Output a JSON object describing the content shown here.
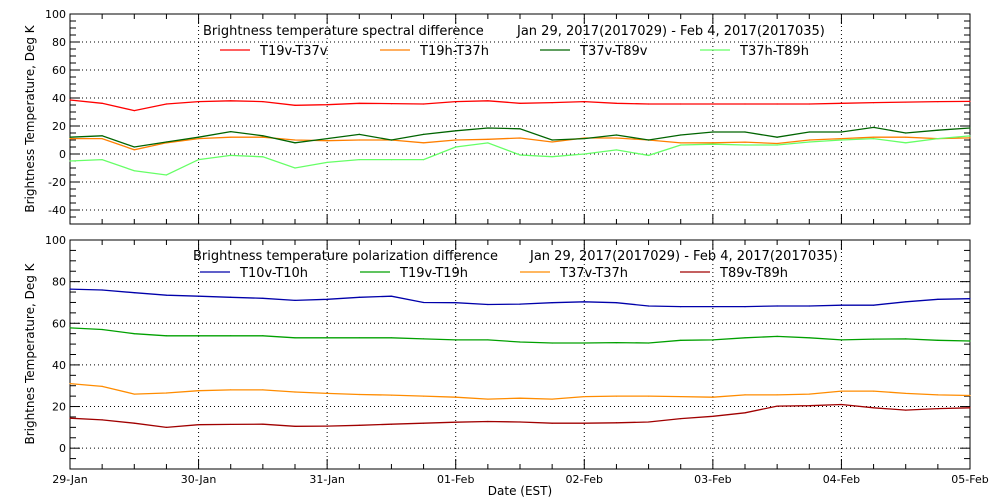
{
  "chart_data": [
    {
      "type": "line",
      "title": "Brightness temperature spectral difference",
      "subtitle": "Jan 29, 2017(2017029) - Feb  4, 2017(2017035)",
      "xlabel": "",
      "ylabel": "Brightness Temperature, Deg K",
      "ylim": [
        -50,
        100
      ],
      "yticks": [
        "100",
        "80",
        "60",
        "40",
        "20",
        "0",
        "-20",
        "-40"
      ],
      "xlim": [
        "2017-01-29T00:00",
        "2017-02-05T00:00"
      ],
      "grid": true,
      "legend": "top",
      "x": [
        "2017-01-29T00:00",
        "2017-01-29T06:00",
        "2017-01-29T12:00",
        "2017-01-29T18:00",
        "2017-01-30T00:00",
        "2017-01-30T06:00",
        "2017-01-30T12:00",
        "2017-01-30T18:00",
        "2017-01-31T00:00",
        "2017-01-31T06:00",
        "2017-01-31T12:00",
        "2017-01-31T18:00",
        "2017-02-01T00:00",
        "2017-02-01T06:00",
        "2017-02-01T12:00",
        "2017-02-01T18:00",
        "2017-02-02T00:00",
        "2017-02-02T06:00",
        "2017-02-02T12:00",
        "2017-02-02T18:00",
        "2017-02-03T00:00",
        "2017-02-03T06:00",
        "2017-02-03T12:00",
        "2017-02-03T18:00",
        "2017-02-04T00:00",
        "2017-02-04T06:00",
        "2017-02-04T12:00",
        "2017-02-04T18:00",
        "2017-02-05T00:00"
      ],
      "series": [
        {
          "name": "T19v-T37v",
          "color": "#ff0000",
          "values": [
            38.6,
            36.2,
            31,
            35.7,
            37.4,
            38,
            37.4,
            34.8,
            35.2,
            36.2,
            36,
            35.7,
            37.4,
            38,
            36.2,
            36.7,
            37.4,
            36.2,
            35.7,
            35.7,
            35.7,
            35.7,
            35.7,
            35.7,
            36.2,
            36.7,
            37.1,
            37.4,
            37.6
          ]
        },
        {
          "name": "T19h-T37h",
          "color": "#ff7f00",
          "values": [
            11,
            11,
            3,
            8,
            11,
            12,
            12,
            10,
            9.5,
            10,
            10,
            8,
            10,
            10.5,
            11.4,
            8.6,
            11.4,
            11.4,
            10,
            7.9,
            8,
            8.5,
            7.5,
            10,
            11,
            12,
            12,
            11,
            11.5
          ]
        },
        {
          "name": "T37v-T89v",
          "color": "#006400",
          "values": [
            12,
            13,
            5,
            8.6,
            12,
            16,
            13,
            8,
            11,
            14,
            10,
            14,
            16.6,
            18.6,
            18,
            10,
            11,
            13.6,
            10,
            13.6,
            15.7,
            15.7,
            12,
            15.7,
            15.7,
            19,
            15,
            17,
            18.6
          ]
        },
        {
          "name": "T37h-T89h",
          "color": "#66ff66",
          "values": [
            -5,
            -4,
            -12,
            -15,
            -4,
            -1,
            -2,
            -10,
            -6,
            -4,
            -4,
            -4,
            5,
            7.9,
            -0.7,
            -1.9,
            0,
            2.9,
            -1,
            6.4,
            7,
            6.4,
            6.4,
            8.6,
            10,
            11,
            8,
            11,
            12.9
          ]
        }
      ]
    },
    {
      "type": "line",
      "title": "Brightness temperature polarization difference",
      "subtitle": "Jan 29, 2017(2017029) - Feb  4, 2017(2017035)",
      "xlabel": "Date (EST)",
      "ylabel": "Brightnes Temperature, Deg K",
      "ylim": [
        -10,
        100
      ],
      "yticks": [
        "100",
        "80",
        "60",
        "40",
        "20",
        "0"
      ],
      "xticks": [
        "29-Jan",
        "30-Jan",
        "31-Jan",
        "01-Feb",
        "02-Feb",
        "03-Feb",
        "04-Feb",
        "05-Feb"
      ],
      "xlim": [
        "2017-01-29T00:00",
        "2017-02-05T00:00"
      ],
      "grid": true,
      "legend": "top",
      "x": [
        "2017-01-29T00:00",
        "2017-01-29T06:00",
        "2017-01-29T12:00",
        "2017-01-29T18:00",
        "2017-01-30T00:00",
        "2017-01-30T06:00",
        "2017-01-30T12:00",
        "2017-01-30T18:00",
        "2017-01-31T00:00",
        "2017-01-31T06:00",
        "2017-01-31T12:00",
        "2017-01-31T18:00",
        "2017-02-01T00:00",
        "2017-02-01T06:00",
        "2017-02-01T12:00",
        "2017-02-01T18:00",
        "2017-02-02T00:00",
        "2017-02-02T06:00",
        "2017-02-02T12:00",
        "2017-02-02T18:00",
        "2017-02-03T00:00",
        "2017-02-03T06:00",
        "2017-02-03T12:00",
        "2017-02-03T18:00",
        "2017-02-04T00:00",
        "2017-02-04T06:00",
        "2017-02-04T12:00",
        "2017-02-04T18:00",
        "2017-02-05T00:00"
      ],
      "series": [
        {
          "name": "T10v-T10h",
          "color": "#0000aa",
          "values": [
            76.4,
            76,
            74.7,
            73.5,
            73,
            72.5,
            72,
            71,
            71.5,
            72.5,
            73,
            70,
            69.9,
            69,
            69.2,
            69.9,
            70.3,
            69.9,
            68.3,
            68,
            68,
            68,
            68.3,
            68.3,
            68.7,
            68.7,
            70.3,
            71.5,
            71.8
          ]
        },
        {
          "name": "T19v-T19h",
          "color": "#00a000",
          "values": [
            57.8,
            57,
            55,
            54,
            54,
            54,
            54,
            53,
            53,
            53,
            53,
            52.5,
            52,
            52,
            51,
            50.5,
            50.5,
            50.7,
            50.5,
            51.8,
            52,
            53,
            53.7,
            53,
            52,
            52.4,
            52.5,
            51.8,
            51.5
          ]
        },
        {
          "name": "T37v-T37h",
          "color": "#ff8c00",
          "values": [
            31,
            29.7,
            26,
            26.5,
            27.6,
            28,
            28,
            27,
            26.3,
            25.8,
            25.5,
            25,
            24.5,
            23.6,
            24,
            23.6,
            24.8,
            25,
            25,
            24.8,
            24.5,
            25.6,
            25.6,
            26,
            27.4,
            27.4,
            26.3,
            25.6,
            25.3
          ]
        },
        {
          "name": "T89v-T89h",
          "color": "#a00000",
          "values": [
            14.4,
            13.6,
            12,
            10,
            11.3,
            11.4,
            11.5,
            10.5,
            10.6,
            11,
            11.5,
            12,
            12.5,
            12.8,
            12.6,
            12,
            12,
            12.2,
            12.6,
            14.2,
            15.3,
            17,
            20.2,
            20.4,
            21,
            19.4,
            18.3,
            19,
            19.4
          ]
        }
      ]
    }
  ]
}
